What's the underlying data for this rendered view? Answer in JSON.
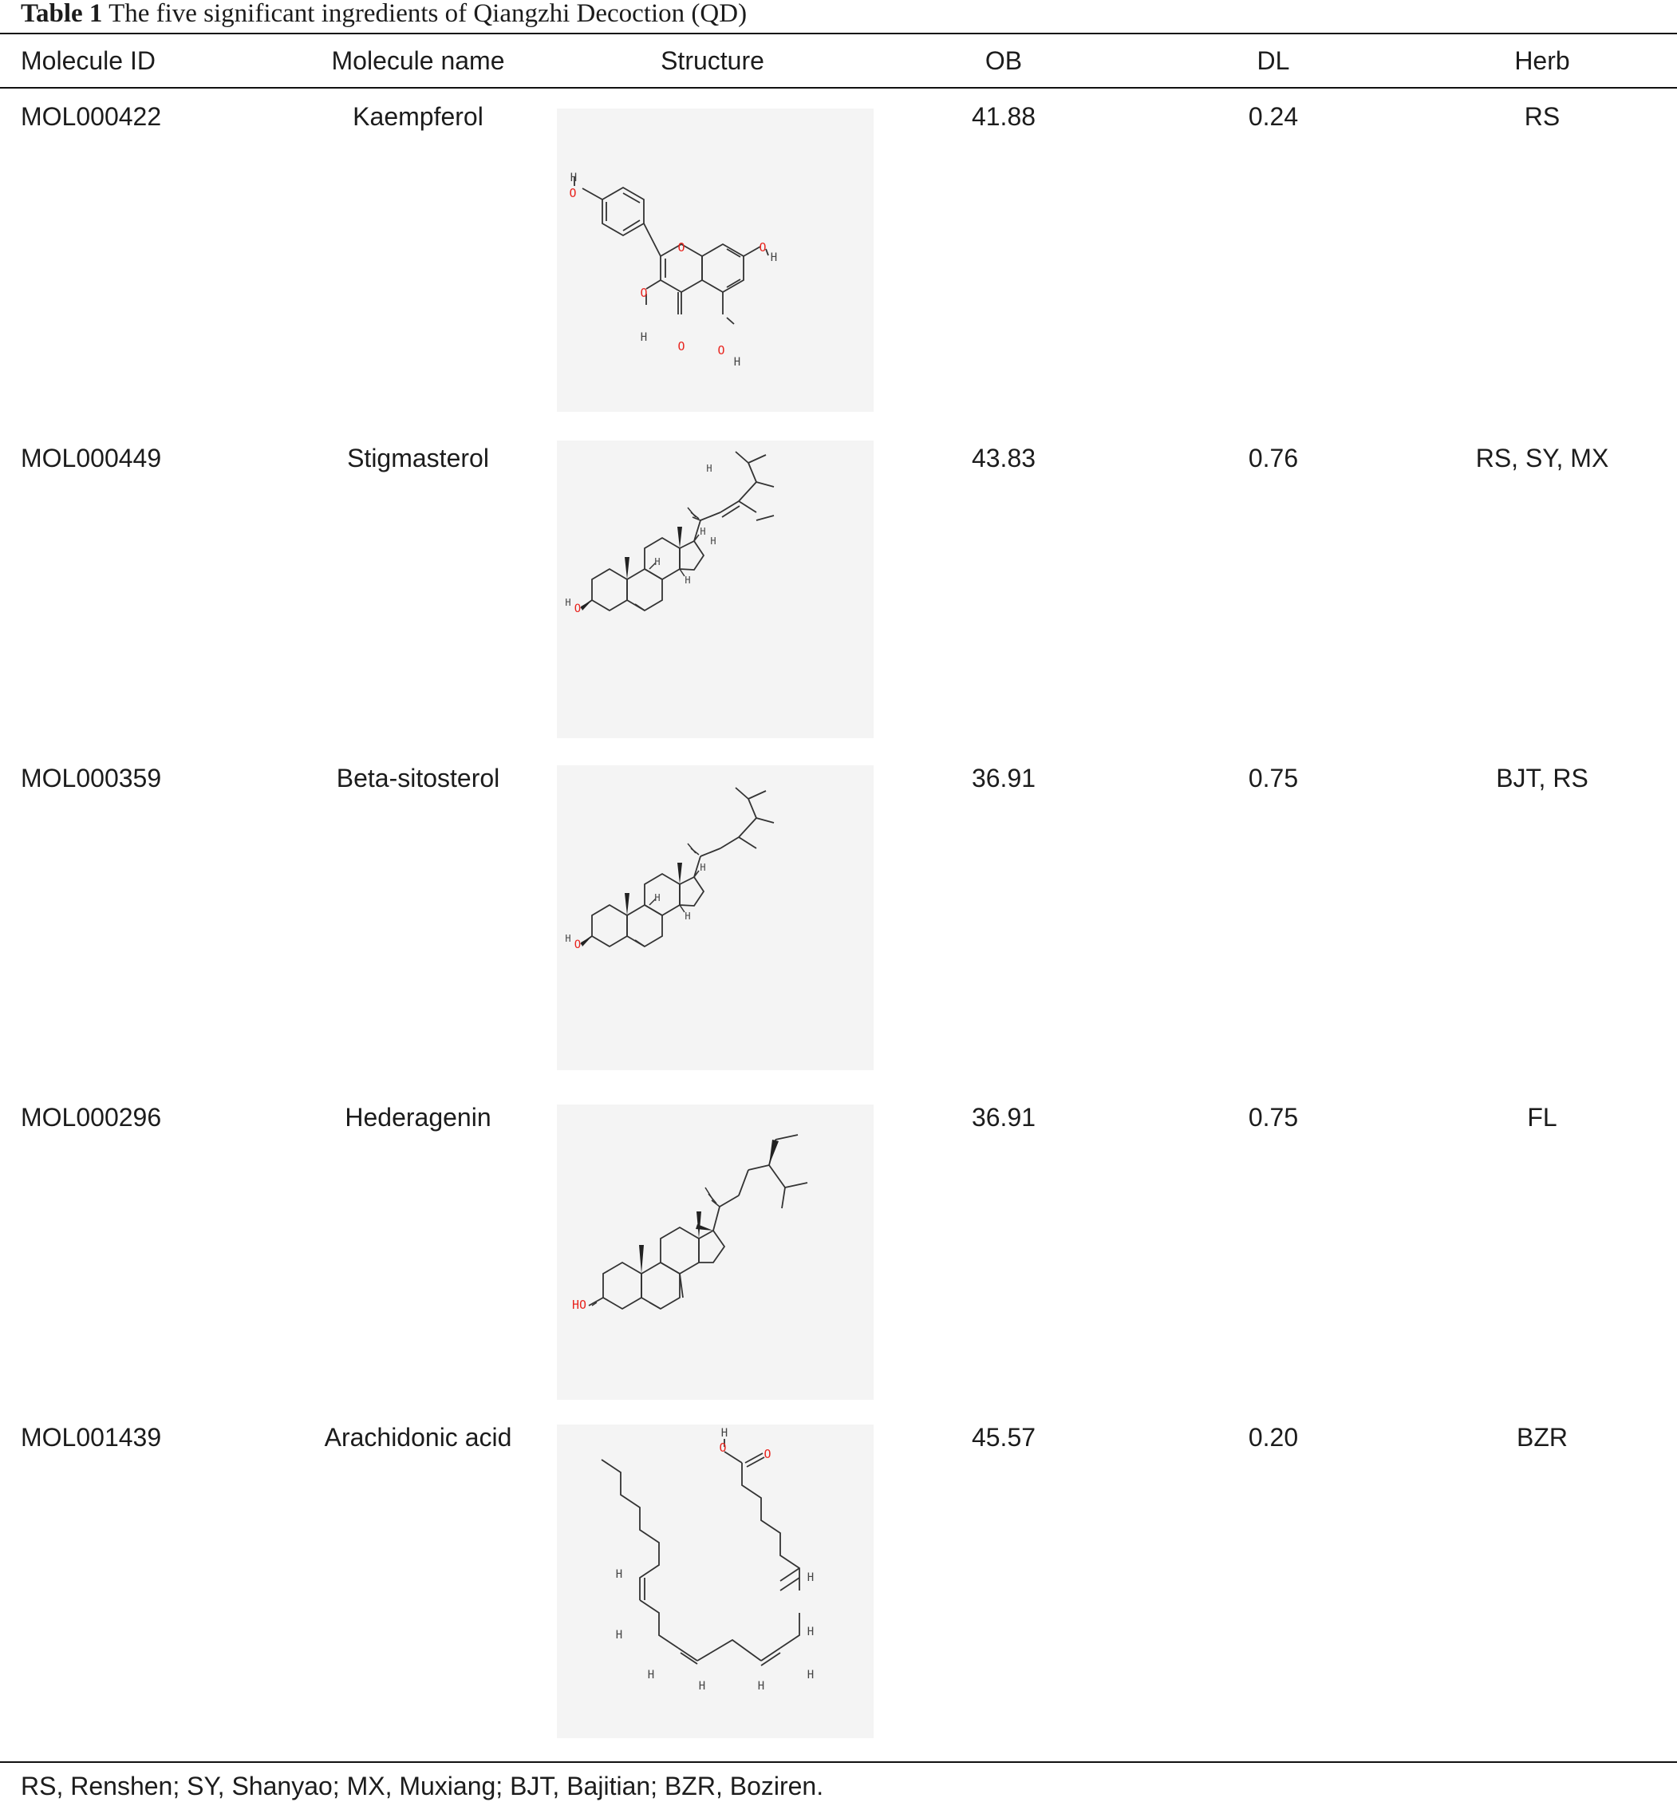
{
  "table": {
    "caption_label": "Table 1",
    "caption_text": "The five significant ingredients of Qiangzhi Decoction (QD)",
    "headers": [
      "Molecule ID",
      "Molecule name",
      "Structure",
      "OB",
      "DL",
      "Herb"
    ],
    "rows": [
      {
        "id": "MOL000422",
        "name": "Kaempferol",
        "structure_icon": "kaempferol-structure-image",
        "ob": "41.88",
        "dl": "0.24",
        "herb": "RS"
      },
      {
        "id": "MOL000449",
        "name": "Stigmasterol",
        "structure_icon": "stigmasterol-structure-image",
        "ob": "43.83",
        "dl": "0.76",
        "herb": "RS, SY, MX"
      },
      {
        "id": "MOL000359",
        "name": "Beta-sitosterol",
        "structure_icon": "beta-sitosterol-structure-image",
        "ob": "36.91",
        "dl": "0.75",
        "herb": "BJT, RS"
      },
      {
        "id": "MOL000296",
        "name": "Hederagenin",
        "structure_icon": "hederagenin-structure-image",
        "ob": "36.91",
        "dl": "0.75",
        "herb": "FL"
      },
      {
        "id": "MOL001439",
        "name": "Arachidonic acid",
        "structure_icon": "arachidonic-acid-structure-image",
        "ob": "45.57",
        "dl": "0.20",
        "herb": "BZR"
      }
    ],
    "footnote": "RS, Renshen; SY, Shanyao; MX, Muxiang; BJT, Bajitian; BZR, Boziren."
  },
  "colors": {
    "text": "#1c1c1c",
    "rule": "#111111",
    "structure_bg": "#f4f4f4",
    "bond": "#333333",
    "oxygen": "#e8251f"
  }
}
